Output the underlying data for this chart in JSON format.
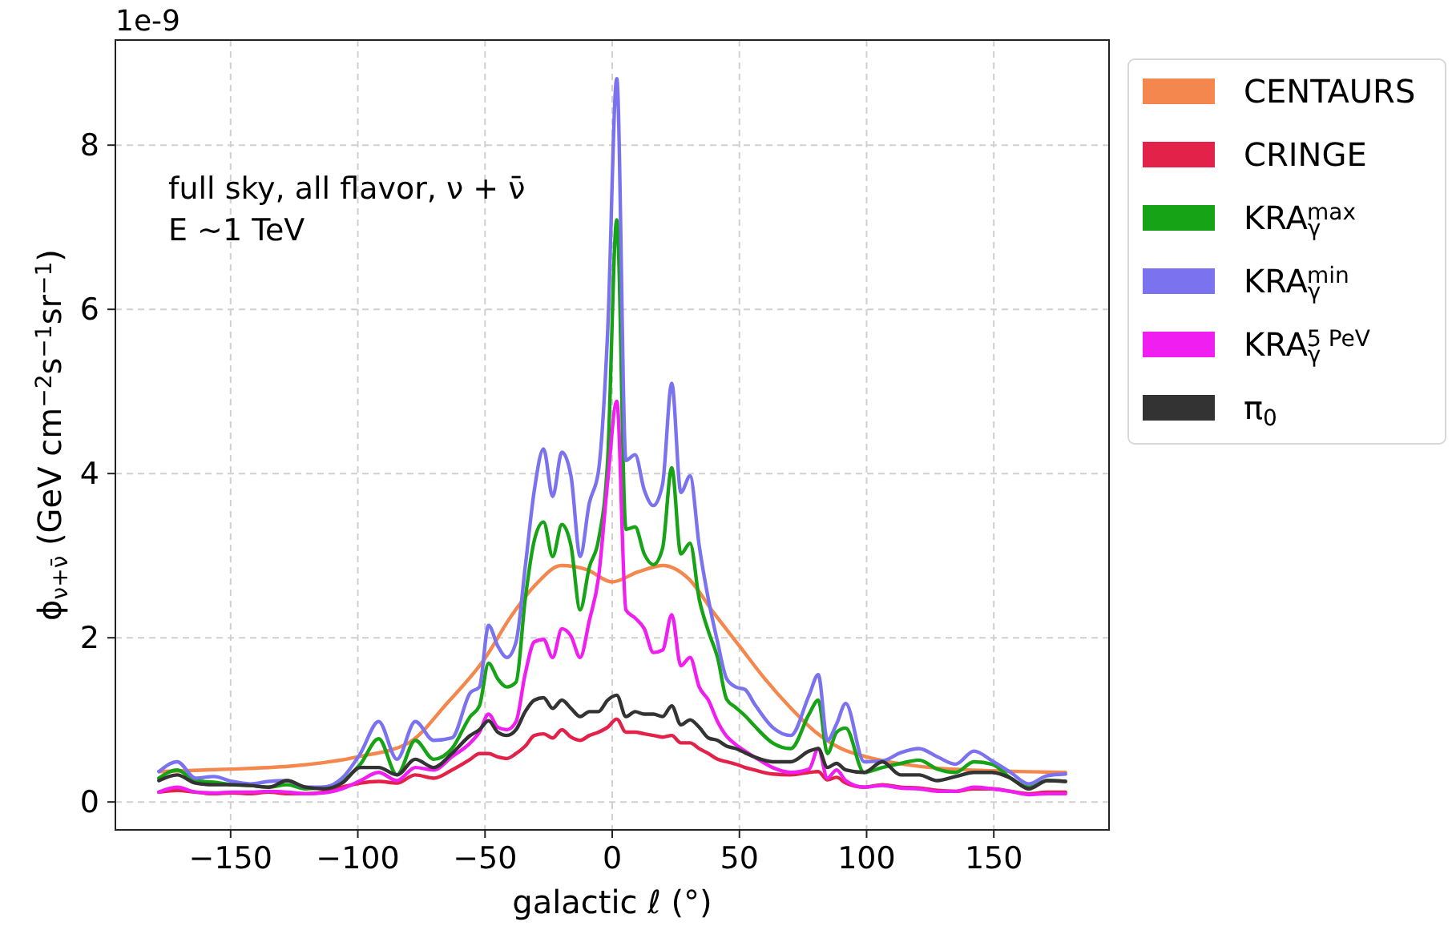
{
  "chart_data": {
    "type": "line",
    "xlabel": "galactic ℓ (°)",
    "ylabel": "ϕ$_{ν+ν̄}$ (GeV cm$^{−2}$s$^{−1}$sr$^{−1}$)",
    "annotations": [
      "1e-9",
      "full sky, all flavor, ν + ν̄",
      "E  ~1 TeV"
    ],
    "x": [
      -178.2,
      -171,
      -163.8,
      -156.6,
      -149.4,
      -142.2,
      -135,
      -127.8,
      -120.6,
      -113.4,
      -106.2,
      -99,
      -91.8,
      -84.6,
      -77.4,
      -70.2,
      -63,
      -55.8,
      -52.2,
      -48.6,
      -45,
      -41.4,
      -37.8,
      -34.2,
      -30.6,
      -27,
      -23.4,
      -19.8,
      -16.2,
      -12.6,
      -9,
      -5.4,
      -1.8,
      1.8,
      5.4,
      9,
      12.6,
      16.2,
      19.8,
      23.4,
      27,
      30.6,
      34.2,
      37.8,
      41.4,
      45,
      48.6,
      52.2,
      55.8,
      63,
      70.2,
      77.4,
      81,
      84.6,
      88.2,
      91.8,
      99,
      106.2,
      113.4,
      120.6,
      127.8,
      135,
      142.2,
      149.4,
      156.6,
      163.8,
      171,
      178.2
    ],
    "series": [
      {
        "name": "CENTAURS",
        "color": "#f4874d",
        "x": [
          -178.2,
          -150,
          -125,
          -100,
          -80,
          -65,
          -50,
          -40,
          -30,
          -20,
          -10,
          0,
          10,
          20,
          30,
          40,
          50,
          60,
          70,
          80,
          90,
          100,
          125,
          150,
          178.2
        ],
        "values": [
          0.37,
          0.4,
          0.44,
          0.55,
          0.72,
          1.2,
          1.75,
          2.25,
          2.65,
          2.88,
          2.83,
          2.68,
          2.8,
          2.88,
          2.72,
          2.3,
          1.9,
          1.5,
          1.15,
          0.85,
          0.65,
          0.55,
          0.42,
          0.38,
          0.36
        ]
      },
      {
        "name": "CRINGE",
        "color": "#e3224a",
        "values": [
          0.12,
          0.14,
          0.12,
          0.1,
          0.11,
          0.1,
          0.12,
          0.1,
          0.1,
          0.12,
          0.18,
          0.23,
          0.25,
          0.23,
          0.33,
          0.29,
          0.39,
          0.52,
          0.59,
          0.59,
          0.55,
          0.53,
          0.59,
          0.68,
          0.81,
          0.83,
          0.78,
          0.88,
          0.79,
          0.75,
          0.81,
          0.85,
          0.91,
          1.01,
          0.85,
          0.85,
          0.83,
          0.81,
          0.79,
          0.81,
          0.72,
          0.72,
          0.65,
          0.59,
          0.52,
          0.49,
          0.46,
          0.42,
          0.39,
          0.34,
          0.33,
          0.36,
          0.37,
          0.27,
          0.3,
          0.23,
          0.18,
          0.21,
          0.18,
          0.17,
          0.14,
          0.13,
          0.16,
          0.16,
          0.13,
          0.1,
          0.12,
          0.12
        ]
      },
      {
        "name": "KRA$_{γ}$$^{max}$",
        "color": "#16a316",
        "values": [
          0.29,
          0.39,
          0.26,
          0.24,
          0.21,
          0.2,
          0.18,
          0.21,
          0.16,
          0.18,
          0.25,
          0.46,
          0.77,
          0.33,
          0.75,
          0.52,
          0.65,
          1.04,
          1.17,
          1.69,
          1.5,
          1.4,
          1.46,
          2.47,
          3.19,
          3.41,
          2.99,
          3.38,
          3.12,
          2.34,
          2.86,
          3.19,
          4.16,
          7.09,
          3.32,
          3.35,
          3.02,
          2.89,
          3.09,
          4.07,
          3.02,
          3.15,
          2.47,
          2.08,
          1.76,
          1.25,
          1.15,
          1.05,
          0.93,
          0.72,
          0.65,
          1.07,
          1.24,
          0.59,
          0.85,
          0.9,
          0.36,
          0.42,
          0.47,
          0.51,
          0.4,
          0.36,
          0.49,
          0.46,
          0.29,
          0.18,
          0.26,
          0.25
        ]
      },
      {
        "name": "KRA$_{γ}$$^{min}$",
        "color": "#7b72f0",
        "values": [
          0.37,
          0.49,
          0.29,
          0.31,
          0.25,
          0.22,
          0.25,
          0.26,
          0.18,
          0.18,
          0.29,
          0.59,
          0.98,
          0.52,
          0.98,
          0.75,
          0.78,
          1.33,
          1.4,
          2.15,
          1.9,
          1.76,
          1.95,
          2.86,
          3.8,
          4.3,
          3.72,
          4.26,
          3.97,
          2.99,
          3.64,
          4.03,
          5.72,
          8.81,
          4.16,
          4.23,
          3.8,
          3.61,
          3.87,
          5.1,
          3.77,
          3.97,
          3.12,
          2.47,
          1.95,
          1.5,
          1.4,
          1.37,
          1.2,
          0.91,
          0.81,
          1.3,
          1.55,
          0.75,
          0.95,
          1.2,
          0.49,
          0.5,
          0.6,
          0.65,
          0.55,
          0.46,
          0.62,
          0.5,
          0.36,
          0.22,
          0.32,
          0.34
        ]
      },
      {
        "name": "KRA$_{γ}$$^{5 PeV}$",
        "color": "#f01ef0",
        "values": [
          0.12,
          0.18,
          0.12,
          0.11,
          0.12,
          0.12,
          0.13,
          0.12,
          0.1,
          0.11,
          0.16,
          0.26,
          0.36,
          0.26,
          0.42,
          0.39,
          0.55,
          0.72,
          0.85,
          1.07,
          0.91,
          0.88,
          0.98,
          1.56,
          1.95,
          1.98,
          1.76,
          2.11,
          2.02,
          1.76,
          2.21,
          2.73,
          3.9,
          4.88,
          2.34,
          2.24,
          2.11,
          1.82,
          1.85,
          2.28,
          1.66,
          1.76,
          1.4,
          1.24,
          0.98,
          0.8,
          0.7,
          0.62,
          0.55,
          0.42,
          0.36,
          0.4,
          0.65,
          0.29,
          0.39,
          0.26,
          0.18,
          0.2,
          0.17,
          0.16,
          0.13,
          0.13,
          0.18,
          0.16,
          0.13,
          0.09,
          0.1,
          0.1
        ]
      },
      {
        "name": "π$_{0}$",
        "color": "#333333",
        "values": [
          0.26,
          0.33,
          0.23,
          0.21,
          0.21,
          0.2,
          0.18,
          0.26,
          0.18,
          0.16,
          0.23,
          0.42,
          0.42,
          0.33,
          0.52,
          0.42,
          0.59,
          0.81,
          0.88,
          0.99,
          0.85,
          0.81,
          0.88,
          1.1,
          1.24,
          1.27,
          1.14,
          1.24,
          1.14,
          1.04,
          1.1,
          1.1,
          1.24,
          1.3,
          1.04,
          1.1,
          1.07,
          1.07,
          1.04,
          1.17,
          0.94,
          1.0,
          0.91,
          0.78,
          0.75,
          0.68,
          0.65,
          0.6,
          0.55,
          0.49,
          0.49,
          0.62,
          0.65,
          0.42,
          0.47,
          0.39,
          0.36,
          0.49,
          0.33,
          0.33,
          0.26,
          0.31,
          0.36,
          0.36,
          0.29,
          0.16,
          0.26,
          0.25
        ]
      }
    ],
    "xlim": [
      -195.3,
      195.3
    ],
    "ylim": [
      -0.34,
      9.28
    ],
    "xticks": [
      {
        "value": -150,
        "label": "−150"
      },
      {
        "value": -100,
        "label": "−100"
      },
      {
        "value": -50,
        "label": "−50"
      },
      0,
      50,
      100,
      150
    ],
    "yticks": [
      0,
      2,
      4,
      6,
      8
    ],
    "grid": true,
    "legend": "right",
    "marker": "none",
    "line_style": "solid"
  }
}
